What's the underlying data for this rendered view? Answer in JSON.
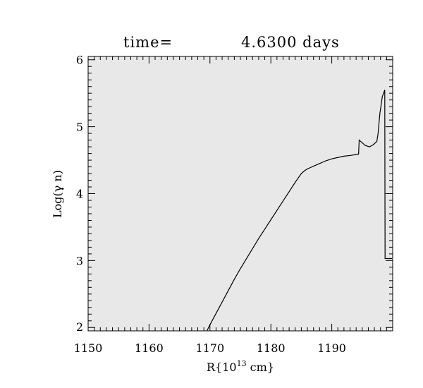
{
  "chart_data": {
    "type": "line",
    "title_prefix": "time=",
    "title_value": "4.6300 days",
    "xlabel": "R{10",
    "xlabel_sup": "13",
    "xlabel_suffix": " cm}",
    "ylabel": "Log(γ n)",
    "xlim": [
      1150,
      1200
    ],
    "ylim": [
      1.95,
      6.05
    ],
    "xticks": [
      1150,
      1160,
      1170,
      1180,
      1190
    ],
    "yticks": [
      2,
      3,
      4,
      5,
      6
    ],
    "grid": false,
    "plot_background": "#e8e8e8",
    "line_color": "#000000",
    "series": [
      {
        "x": [
          1169.5,
          1170,
          1171,
          1172,
          1173,
          1174,
          1175,
          1176,
          1177,
          1178,
          1179,
          1180,
          1181,
          1182,
          1183,
          1184,
          1185,
          1185.5,
          1186,
          1186.5,
          1187,
          1188,
          1189,
          1190,
          1191,
          1192,
          1193,
          1194.4,
          1194.5,
          1195.5,
          1196.2,
          1196.8,
          1197.4,
          1197.6,
          1197.9,
          1198.3,
          1198.7,
          1198.75,
          1199.9
        ],
        "y": [
          1.95,
          2.04,
          2.21,
          2.38,
          2.55,
          2.72,
          2.88,
          3.03,
          3.18,
          3.33,
          3.47,
          3.61,
          3.75,
          3.89,
          4.03,
          4.17,
          4.3,
          4.34,
          4.37,
          4.39,
          4.41,
          4.45,
          4.49,
          4.52,
          4.54,
          4.56,
          4.57,
          4.59,
          4.8,
          4.72,
          4.7,
          4.73,
          4.78,
          4.9,
          5.2,
          5.45,
          5.55,
          3.03,
          3.03
        ]
      }
    ]
  }
}
